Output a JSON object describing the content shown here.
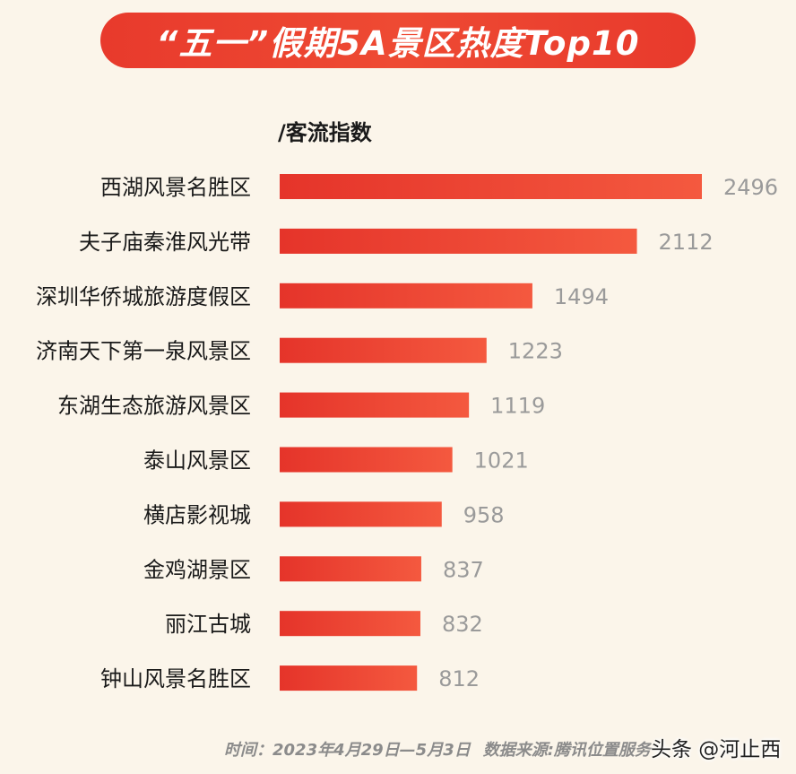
{
  "title": "“五一”假期5A景区热度Top10",
  "unit_label": "/客流指数",
  "footer": {
    "time_label": "时间：2023年4月29日—5月3日",
    "source_label": "数据来源:腾讯位置服务"
  },
  "watermark": "头条 @河止西",
  "colors": {
    "background": "#fbf5ea",
    "bar_start": "#e5342a",
    "bar_end": "#f4593f",
    "title_banner": "#e83a2c",
    "value_text": "#9a9a9a",
    "label_text": "#1a1a1a"
  },
  "chart_data": {
    "type": "bar",
    "orientation": "horizontal",
    "title": "“五一”假期5A景区热度Top10",
    "xlabel": "/客流指数",
    "ylabel": "",
    "categories": [
      "西湖风景名胜区",
      "夫子庙秦淮风光带",
      "深圳华侨城旅游度假区",
      "济南天下第一泉风景区",
      "东湖生态旅游风景区",
      "泰山风景区",
      "横店影视城",
      "金鸡湖景区",
      "丽江古城",
      "钟山风景名胜区"
    ],
    "values": [
      2496,
      2112,
      1494,
      1223,
      1119,
      1021,
      958,
      837,
      832,
      812
    ],
    "xlim": [
      0,
      2496
    ],
    "grid": false,
    "legend": "none",
    "data_labels": true
  }
}
